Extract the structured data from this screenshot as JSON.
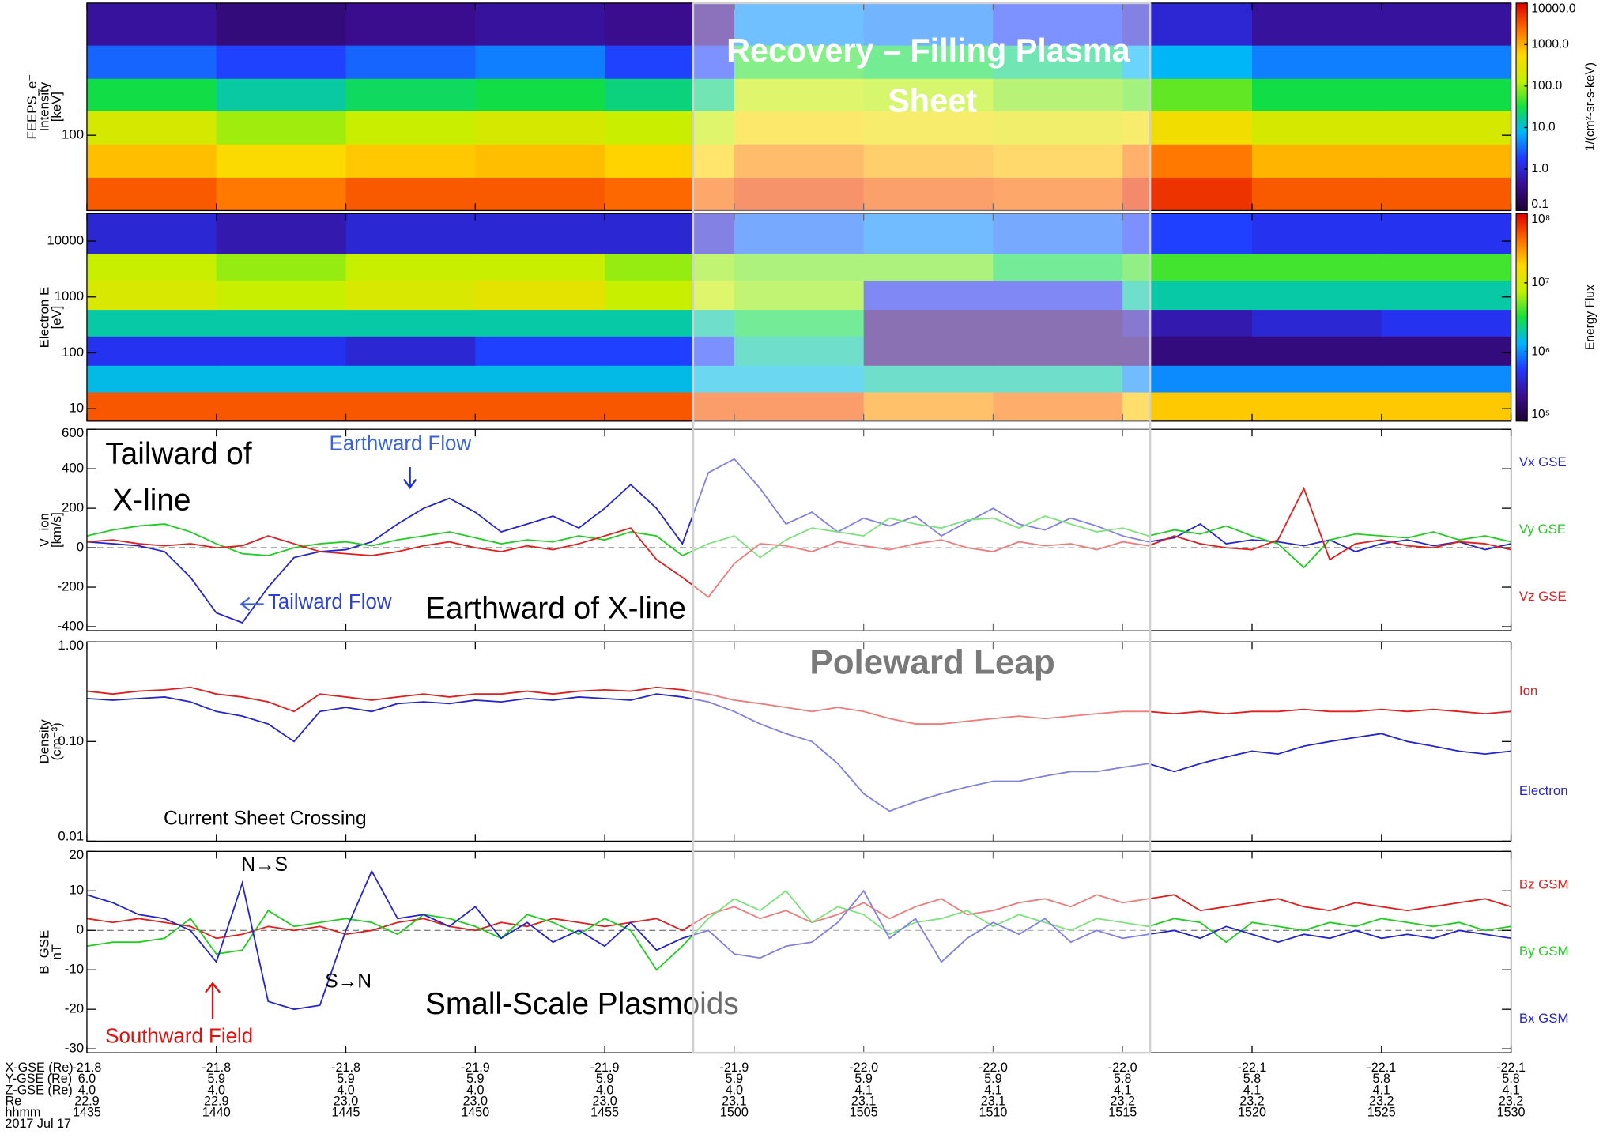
{
  "chart_data": [
    {
      "type": "heatmap",
      "ylabel": [
        "FEEPS_e⁻",
        "Intensity",
        "[keV]"
      ],
      "log_scale": true,
      "ylim": [
        40,
        500
      ],
      "yticks": [
        100
      ],
      "colormap": "rainbow",
      "zlim": [
        0.1,
        10000
      ],
      "zticks": [
        {
          "value": 10000,
          "label": "10000.0"
        },
        {
          "value": 1000,
          "label": "1000.0"
        },
        {
          "value": 100,
          "label": "100.0"
        },
        {
          "value": 10,
          "label": "10.0"
        },
        {
          "value": 1,
          "label": "1.0"
        },
        {
          "value": 0.1,
          "label": "0.1"
        }
      ],
      "colorbar_label": "1/(cm²-sr-s-keV)",
      "x_bins": [
        875,
        880,
        885,
        890,
        895,
        900,
        905,
        910,
        915,
        920,
        925,
        930
      ],
      "y_bins": [
        40,
        60,
        90,
        135,
        200,
        300,
        500
      ],
      "z": [
        [
          3000,
          2000,
          3000,
          3000,
          2500,
          4000,
          3000,
          2500,
          5000,
          3000,
          3000
        ],
        [
          800,
          500,
          700,
          800,
          600,
          1500,
          1000,
          800,
          2000,
          900,
          900
        ],
        [
          200,
          100,
          150,
          200,
          150,
          500,
          400,
          300,
          400,
          200,
          200
        ],
        [
          30,
          15,
          25,
          30,
          20,
          150,
          120,
          80,
          60,
          30,
          30
        ],
        [
          3,
          2,
          3,
          4,
          2,
          40,
          30,
          20,
          8,
          4,
          4
        ],
        [
          0.5,
          0.3,
          0.4,
          0.5,
          0.4,
          5,
          4,
          2,
          1,
          0.5,
          0.5
        ]
      ]
    },
    {
      "type": "heatmap",
      "ylabel": [
        "Electron E",
        "[eV]"
      ],
      "log_scale": true,
      "ylim": [
        6,
        31000
      ],
      "yticks": [
        10,
        100,
        1000,
        10000
      ],
      "colormap": "rainbow",
      "zlim": [
        100000,
        100000000
      ],
      "zticks": [
        {
          "value": 100000000,
          "label": "10⁸"
        },
        {
          "value": 10000000,
          "label": "10⁷"
        },
        {
          "value": 1000000,
          "label": "10⁶"
        },
        {
          "value": 100000,
          "label": "10⁵"
        }
      ],
      "colorbar_label": "Energy Flux",
      "x_bins": [
        875,
        880,
        885,
        890,
        895,
        900,
        905,
        910,
        915,
        920,
        925,
        930
      ],
      "y_bins": [
        6,
        20,
        60,
        200,
        600,
        2000,
        6000,
        31000
      ],
      "z": [
        [
          50000000,
          50000000,
          50000000,
          50000000,
          50000000,
          50000000,
          30000000,
          40000000,
          20000000,
          20000000,
          20000000
        ],
        [
          1500000,
          1500000,
          1500000,
          1500000,
          1500000,
          1500000,
          2000000,
          2000000,
          1000000,
          1000000,
          1000000
        ],
        [
          500000,
          500000,
          400000,
          600000,
          600000,
          2000000,
          200000,
          200000,
          200000,
          200000,
          200000
        ],
        [
          2000000,
          2000000,
          2000000,
          2000000,
          2000000,
          3000000,
          200000,
          200000,
          300000,
          400000,
          500000
        ],
        [
          10000000,
          8000000,
          10000000,
          12000000,
          8000000,
          6000000,
          500000,
          500000,
          2000000,
          2000000,
          2000000
        ],
        [
          8000000,
          6000000,
          8000000,
          8000000,
          6000000,
          5000000,
          5000000,
          3000000,
          4000000,
          4000000,
          4000000
        ],
        [
          400000,
          300000,
          400000,
          400000,
          400000,
          800000,
          1000000,
          800000,
          600000,
          500000,
          500000
        ]
      ]
    },
    {
      "type": "line",
      "ylabel": [
        "V_ion",
        "[km/s]"
      ],
      "ylim": [
        -420,
        600
      ],
      "yticks": [
        -400,
        -200,
        0,
        200,
        400,
        600
      ],
      "zero_line": true,
      "legend": "right",
      "x": [
        875,
        876,
        877,
        878,
        879,
        880,
        881,
        882,
        883,
        884,
        885,
        886,
        887,
        888,
        889,
        890,
        891,
        892,
        893,
        894,
        895,
        896,
        897,
        898,
        899,
        900,
        901,
        902,
        903,
        904,
        905,
        906,
        907,
        908,
        909,
        910,
        911,
        912,
        913,
        914,
        915,
        916,
        917,
        918,
        919,
        920,
        921,
        922,
        923,
        924,
        925,
        926,
        927,
        928,
        929,
        930
      ],
      "series": [
        {
          "name": "Vx GSE",
          "color": "#2626c8",
          "values": [
            30,
            20,
            10,
            -20,
            -150,
            -330,
            -380,
            -200,
            -50,
            -20,
            -10,
            30,
            120,
            200,
            250,
            180,
            80,
            120,
            160,
            100,
            200,
            320,
            200,
            20,
            380,
            450,
            300,
            120,
            180,
            80,
            150,
            110,
            160,
            60,
            130,
            200,
            120,
            90,
            150,
            110,
            60,
            30,
            50,
            120,
            20,
            40,
            30,
            10,
            40,
            -20,
            20,
            40,
            10,
            30,
            -10,
            20
          ]
        },
        {
          "name": "Vy GSE",
          "color": "#22cc22",
          "values": [
            60,
            90,
            110,
            120,
            80,
            20,
            -30,
            -40,
            0,
            20,
            30,
            10,
            40,
            60,
            80,
            50,
            20,
            40,
            30,
            60,
            40,
            80,
            60,
            -40,
            20,
            60,
            -50,
            40,
            100,
            80,
            60,
            150,
            120,
            100,
            140,
            150,
            100,
            160,
            120,
            80,
            100,
            60,
            90,
            70,
            110,
            60,
            20,
            -100,
            40,
            70,
            60,
            50,
            80,
            40,
            60,
            30
          ]
        },
        {
          "name": "Vz GSE",
          "color": "#dd2020",
          "values": [
            30,
            40,
            20,
            10,
            20,
            0,
            10,
            60,
            20,
            -20,
            -30,
            -40,
            -20,
            10,
            30,
            0,
            -20,
            10,
            -10,
            20,
            60,
            100,
            -60,
            -150,
            -250,
            -80,
            20,
            10,
            -20,
            30,
            10,
            -10,
            20,
            40,
            0,
            -20,
            30,
            10,
            20,
            -10,
            30,
            10,
            60,
            20,
            0,
            -10,
            40,
            300,
            -60,
            20,
            40,
            10,
            0,
            30,
            20,
            -10
          ]
        }
      ]
    },
    {
      "type": "line",
      "ylabel": [
        "Density",
        "(cm⁻³)"
      ],
      "log_scale": true,
      "ylim": [
        0.01,
        1
      ],
      "yticks": [
        {
          "value": 1,
          "label": "1.00"
        },
        {
          "value": 0.1,
          "label": "0.10"
        },
        {
          "value": 0.01,
          "label": "0.01"
        }
      ],
      "legend": "right",
      "x": [
        875,
        876,
        877,
        878,
        879,
        880,
        881,
        882,
        883,
        884,
        885,
        886,
        887,
        888,
        889,
        890,
        891,
        892,
        893,
        894,
        895,
        896,
        897,
        898,
        899,
        900,
        901,
        902,
        903,
        904,
        905,
        906,
        907,
        908,
        909,
        910,
        911,
        912,
        913,
        914,
        915,
        916,
        917,
        918,
        919,
        920,
        921,
        922,
        923,
        924,
        925,
        926,
        927,
        928,
        929,
        930
      ],
      "series": [
        {
          "name": "Ion",
          "color": "#dd2020",
          "values": [
            0.32,
            0.3,
            0.32,
            0.33,
            0.35,
            0.3,
            0.28,
            0.25,
            0.2,
            0.3,
            0.28,
            0.26,
            0.28,
            0.3,
            0.28,
            0.3,
            0.3,
            0.32,
            0.3,
            0.32,
            0.33,
            0.32,
            0.35,
            0.33,
            0.3,
            0.26,
            0.24,
            0.22,
            0.2,
            0.22,
            0.2,
            0.17,
            0.15,
            0.15,
            0.16,
            0.17,
            0.18,
            0.17,
            0.18,
            0.19,
            0.2,
            0.2,
            0.19,
            0.2,
            0.19,
            0.2,
            0.2,
            0.21,
            0.2,
            0.2,
            0.21,
            0.2,
            0.21,
            0.2,
            0.19,
            0.2
          ]
        },
        {
          "name": "Electron",
          "color": "#2626c8",
          "values": [
            0.27,
            0.26,
            0.27,
            0.28,
            0.25,
            0.2,
            0.18,
            0.15,
            0.1,
            0.2,
            0.22,
            0.2,
            0.24,
            0.25,
            0.24,
            0.26,
            0.25,
            0.27,
            0.26,
            0.28,
            0.27,
            0.26,
            0.3,
            0.28,
            0.25,
            0.2,
            0.15,
            0.12,
            0.1,
            0.06,
            0.03,
            0.02,
            0.025,
            0.03,
            0.035,
            0.04,
            0.04,
            0.045,
            0.05,
            0.05,
            0.055,
            0.06,
            0.05,
            0.06,
            0.07,
            0.08,
            0.075,
            0.09,
            0.1,
            0.11,
            0.12,
            0.1,
            0.09,
            0.08,
            0.075,
            0.08
          ]
        }
      ]
    },
    {
      "type": "line",
      "ylabel": [
        "B_GSE",
        "nT"
      ],
      "ylim": [
        -31,
        20
      ],
      "yticks": [
        -30,
        -20,
        -10,
        0,
        10,
        20
      ],
      "zero_line": true,
      "legend": "right",
      "x": [
        875,
        876,
        877,
        878,
        879,
        880,
        881,
        882,
        883,
        884,
        885,
        886,
        887,
        888,
        889,
        890,
        891,
        892,
        893,
        894,
        895,
        896,
        897,
        898,
        899,
        900,
        901,
        902,
        903,
        904,
        905,
        906,
        907,
        908,
        909,
        910,
        911,
        912,
        913,
        914,
        915,
        916,
        917,
        918,
        919,
        920,
        921,
        922,
        923,
        924,
        925,
        926,
        927,
        928,
        929,
        930
      ],
      "series": [
        {
          "name": "Bz GSM",
          "color": "#dd2020",
          "values": [
            3,
            2,
            3,
            2,
            1,
            -2,
            -1,
            1,
            0,
            1,
            -1,
            0,
            2,
            3,
            1,
            0,
            2,
            1,
            3,
            2,
            1,
            2,
            3,
            0,
            4,
            6,
            3,
            5,
            2,
            4,
            7,
            3,
            6,
            8,
            4,
            5,
            7,
            8,
            6,
            9,
            7,
            8,
            9,
            5,
            6,
            7,
            8,
            6,
            5,
            7,
            6,
            5,
            6,
            7,
            8,
            6
          ]
        },
        {
          "name": "By GSM",
          "color": "#22cc22",
          "values": [
            -4,
            -3,
            -3,
            -2,
            3,
            -6,
            -5,
            5,
            1,
            2,
            3,
            2,
            -1,
            4,
            3,
            1,
            -2,
            4,
            2,
            -1,
            3,
            0,
            -10,
            -4,
            3,
            8,
            5,
            10,
            2,
            6,
            4,
            -1,
            2,
            3,
            5,
            1,
            4,
            2,
            0,
            3,
            2,
            1,
            3,
            2,
            -3,
            2,
            1,
            0,
            2,
            1,
            3,
            2,
            1,
            2,
            0,
            1
          ]
        },
        {
          "name": "Bx GSM",
          "color": "#2626c8",
          "values": [
            9,
            7,
            4,
            3,
            0,
            -8,
            12,
            -18,
            -20,
            -19,
            0,
            15,
            3,
            4,
            1,
            6,
            -2,
            2,
            -3,
            0,
            -4,
            2,
            -5,
            -2,
            0,
            -6,
            -7,
            -4,
            -3,
            2,
            10,
            -2,
            3,
            -8,
            -2,
            2,
            -1,
            3,
            -3,
            0,
            -2,
            -1,
            0,
            -2,
            1,
            -1,
            -3,
            -1,
            -2,
            0,
            -2,
            -1,
            -2,
            0,
            -1,
            -2
          ]
        }
      ]
    }
  ],
  "time_axis": {
    "xlim": [
      875,
      930
    ],
    "row_labels": [
      "X-GSE (Re)",
      "Y-GSE (Re)",
      "Z-GSE (Re)",
      "Re",
      "hhmm"
    ],
    "date": "2017 Jul 17",
    "ticks": [
      {
        "value": 875,
        "x_gse": "-21.8",
        "y_gse": "6.0",
        "z_gse": "4.0",
        "re": "22.9",
        "label": "1435"
      },
      {
        "value": 880,
        "x_gse": "-21.8",
        "y_gse": "5.9",
        "z_gse": "4.0",
        "re": "22.9",
        "label": "1440"
      },
      {
        "value": 885,
        "x_gse": "-21.8",
        "y_gse": "5.9",
        "z_gse": "4.0",
        "re": "23.0",
        "label": "1445"
      },
      {
        "value": 890,
        "x_gse": "-21.9",
        "y_gse": "5.9",
        "z_gse": "4.0",
        "re": "23.0",
        "label": "1450"
      },
      {
        "value": 895,
        "x_gse": "-21.9",
        "y_gse": "5.9",
        "z_gse": "4.0",
        "re": "23.0",
        "label": "1455"
      },
      {
        "value": 900,
        "x_gse": "-21.9",
        "y_gse": "5.9",
        "z_gse": "4.0",
        "re": "23.1",
        "label": "1500"
      },
      {
        "value": 905,
        "x_gse": "-22.0",
        "y_gse": "5.9",
        "z_gse": "4.1",
        "re": "23.1",
        "label": "1505"
      },
      {
        "value": 910,
        "x_gse": "-22.0",
        "y_gse": "5.9",
        "z_gse": "4.1",
        "re": "23.1",
        "label": "1510"
      },
      {
        "value": 915,
        "x_gse": "-22.0",
        "y_gse": "5.8",
        "z_gse": "4.1",
        "re": "23.2",
        "label": "1515"
      },
      {
        "value": 920,
        "x_gse": "-22.1",
        "y_gse": "5.8",
        "z_gse": "4.1",
        "re": "23.2",
        "label": "1520"
      },
      {
        "value": 925,
        "x_gse": "-22.1",
        "y_gse": "5.8",
        "z_gse": "4.1",
        "re": "23.2",
        "label": "1525"
      },
      {
        "value": 930,
        "x_gse": "-22.1",
        "y_gse": "5.8",
        "z_gse": "4.1",
        "re": "23.2",
        "label": "1530"
      }
    ]
  },
  "annotations": {
    "recovery": [
      "Recovery – Filling Plasma",
      "Sheet"
    ],
    "tailward_of_x_line": [
      "Tailward of",
      "X-line"
    ],
    "earthward_flow": "Earthward Flow",
    "tailward_flow": "Tailward Flow",
    "earthward_of_x_line": "Earthward of X-line",
    "poleward_leap": "Poleward Leap",
    "current_sheet_crossing": "Current Sheet Crossing",
    "n_to_s": "N→S",
    "s_to_n": "S→N",
    "southward_field": "Southward Field",
    "small_scale_plasmoids": "Small-Scale Plasmoids"
  }
}
